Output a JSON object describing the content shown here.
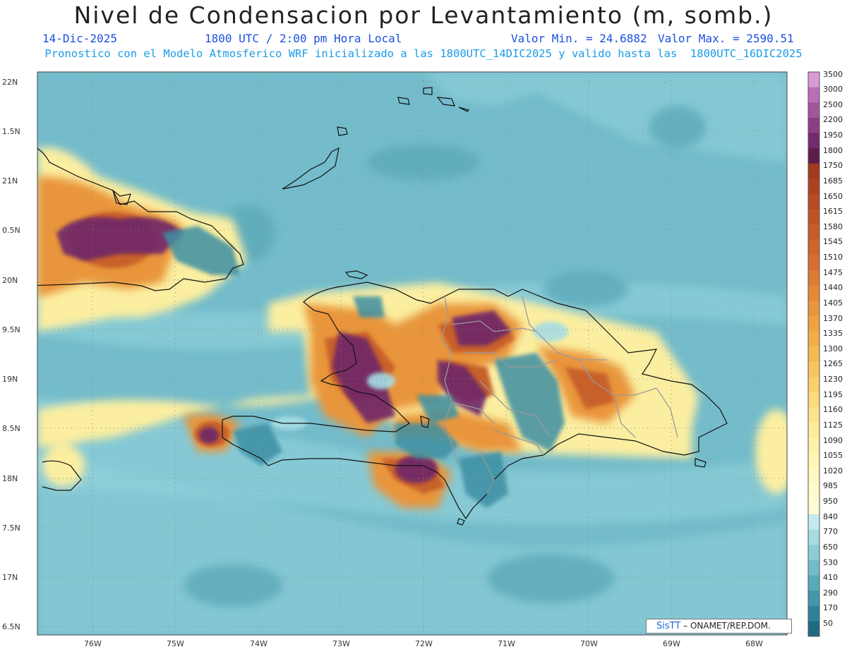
{
  "header": {
    "title": "Nivel de Condensacion por Levantamiento (m, somb.)",
    "date": "14-Dic-2025",
    "time": "1800 UTC / 2:00 pm Hora Local",
    "valmin": "Valor Min. = 24.6882",
    "valmax": "Valor Max. = 2590.51",
    "forecast": "Pronostico con el Modelo Atmosferico WRF inicializado a las 1800UTC_14DIC2025 y valido hasta las  1800UTC_16DIC2025"
  },
  "map": {
    "lat_labels": [
      "22N",
      "1.5N",
      "21N",
      "0.5N",
      "20N",
      "9.5N",
      "19N",
      "8.5N",
      "18N",
      "7.5N",
      "17N",
      "6.5N"
    ],
    "lon_labels": [
      "76W",
      "75W",
      "74W",
      "73W",
      "72W",
      "71W",
      "70W",
      "69W",
      "68W"
    ],
    "credit_logo": "SisTT",
    "credit_text": "– ONAMET/REP.DOM.",
    "colors": {
      "sea": "#74bccb",
      "land_border": "#111111",
      "province_border": "#9a9a9a"
    }
  },
  "colorbar": {
    "labels": [
      "3500",
      "3000",
      "2500",
      "2200",
      "1950",
      "1800",
      "1750",
      "1685",
      "1650",
      "1615",
      "1580",
      "1545",
      "1510",
      "1475",
      "1440",
      "1405",
      "1370",
      "1335",
      "1300",
      "1265",
      "1230",
      "1195",
      "1160",
      "1125",
      "1090",
      "1055",
      "1020",
      "985",
      "950",
      "840",
      "770",
      "650",
      "530",
      "410",
      "290",
      "170",
      "50"
    ],
    "colors": [
      "#d79bd6",
      "#bb6fb8",
      "#a2569e",
      "#8d3e86",
      "#742a6e",
      "#5c1d4c",
      "#a23a1e",
      "#ad421f",
      "#b64b22",
      "#bf5325",
      "#c75c29",
      "#cf652c",
      "#d76f30",
      "#de7b33",
      "#e48837",
      "#ea953b",
      "#ef a240",
      "#f3ae48",
      "#f6ba52",
      "#f8c55e",
      "#fad06c",
      "#fcdb7b",
      "#fde48b",
      "#feec9b",
      "#fef2aa",
      "#fff5b5",
      "#fff8c2",
      "#fffacc",
      "#fffbd3",
      "#c3ebee",
      "#a5dbe2",
      "#8acdd6",
      "#71bdca",
      "#58aabb",
      "#4397aa",
      "#2f8197",
      "#1f6b82"
    ]
  }
}
